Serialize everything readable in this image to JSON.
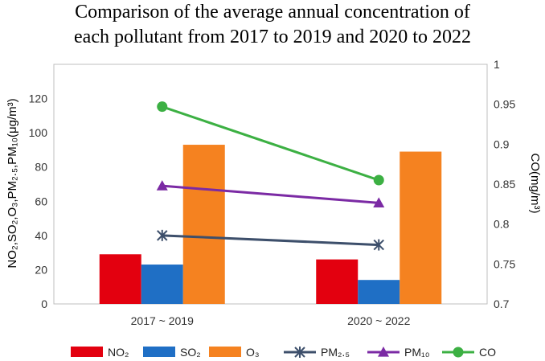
{
  "chart_data": {
    "type": "bar+line",
    "title_line1": "Comparison of the average annual concentration of",
    "title_line2": "each pollutant from 2017 to 2019 and 2020 to 2022",
    "categories": [
      "2017 ~ 2019",
      "2020 ~ 2022"
    ],
    "ylabel_left": "NO₂,SO₂,O₃,PM₂.₅,PM₁₀(μg/m³)",
    "ylabel_right": "CO(mg/m³)",
    "ylim_left": [
      0,
      140
    ],
    "ylim_right": [
      0.7,
      1.0
    ],
    "left_ticks": [
      "0",
      "20",
      "40",
      "60",
      "80",
      "100",
      "120"
    ],
    "right_ticks": [
      "0.7",
      "0.75",
      "0.8",
      "0.85",
      "0.9",
      "0.95",
      "1"
    ],
    "bar_series": [
      {
        "name": "NO₂",
        "values": [
          29,
          26
        ],
        "color": "#e3000f"
      },
      {
        "name": "SO₂",
        "values": [
          23,
          14
        ],
        "color": "#1f6fc5"
      },
      {
        "name": "O₃",
        "values": [
          93,
          89
        ],
        "color": "#f58220"
      }
    ],
    "line_series": [
      {
        "name": "PM₂.₅",
        "values": [
          40,
          34.5
        ],
        "color": "#3d4f6b",
        "marker": "star",
        "axis": "left"
      },
      {
        "name": "PM₁₀",
        "values": [
          69,
          59
        ],
        "color": "#7b2aa4",
        "marker": "triangle",
        "axis": "left"
      },
      {
        "name": "CO",
        "values": [
          0.947,
          0.855
        ],
        "color": "#3cb043",
        "marker": "circle",
        "axis": "right"
      }
    ],
    "legend_order": [
      "NO₂",
      "SO₂",
      "O₃",
      "PM₂.₅",
      "PM₁₀",
      "CO"
    ]
  }
}
